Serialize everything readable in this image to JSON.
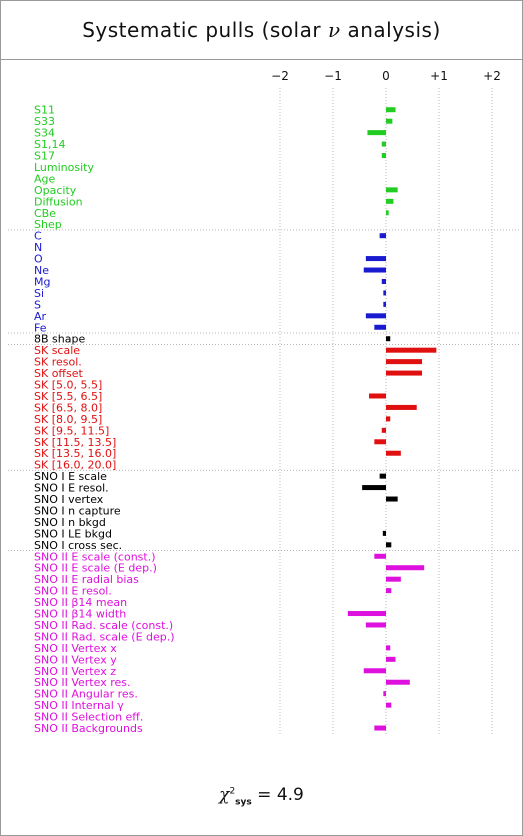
{
  "title": {
    "prefix": "Systematic pulls (solar ",
    "symbol": "ν",
    "suffix": " analysis)"
  },
  "chi2": {
    "symbol": "χ",
    "sup": "2",
    "sub": "sys",
    "text": " = 4.9"
  },
  "chart_data": {
    "type": "bar",
    "orientation": "horizontal",
    "title": "Systematic pulls (solar ν analysis)",
    "xlim": [
      -2.3,
      2.3
    ],
    "xticks": [
      -2,
      -1,
      0,
      1,
      2
    ],
    "xtick_labels": [
      "−2",
      "−1",
      "0",
      "+1",
      "+2"
    ],
    "grid": true,
    "colors": {
      "solar": "#22cc22",
      "composition": "#1a1ad0",
      "b8": "#000000",
      "sk": "#e01010",
      "snoI": "#000000",
      "snoII": "#dd10dd"
    },
    "groups": [
      {
        "name": "solar",
        "color": "#22cc22",
        "items": [
          {
            "label": "S11",
            "value": 0.18
          },
          {
            "label": "S33",
            "value": 0.12
          },
          {
            "label": "S34",
            "value": -0.35
          },
          {
            "label": "S1,14",
            "value": -0.08
          },
          {
            "label": "S17",
            "value": -0.08
          },
          {
            "label": "Luminosity",
            "value": 0.0
          },
          {
            "label": "Age",
            "value": 0.0
          },
          {
            "label": "Opacity",
            "value": 0.22
          },
          {
            "label": "Diffusion",
            "value": 0.14
          },
          {
            "label": "CBe",
            "value": 0.05
          },
          {
            "label": "Shep",
            "value": 0.0
          }
        ]
      },
      {
        "name": "composition",
        "color": "#1a1ad0",
        "items": [
          {
            "label": "C",
            "value": -0.12
          },
          {
            "label": "N",
            "value": 0.0
          },
          {
            "label": "O",
            "value": -0.38
          },
          {
            "label": "Ne",
            "value": -0.42
          },
          {
            "label": "Mg",
            "value": -0.08
          },
          {
            "label": "Si",
            "value": -0.05
          },
          {
            "label": "S",
            "value": -0.05
          },
          {
            "label": "Ar",
            "value": -0.38
          },
          {
            "label": "Fe",
            "value": -0.22
          }
        ]
      },
      {
        "name": "b8",
        "color": "#000000",
        "items": [
          {
            "label": "8B shape",
            "value": 0.08
          }
        ]
      },
      {
        "name": "sk",
        "color": "#e01010",
        "items": [
          {
            "label": "SK scale",
            "value": 0.95
          },
          {
            "label": "SK resol.",
            "value": 0.68
          },
          {
            "label": "SK offset",
            "value": 0.68
          },
          {
            "label": "SK [5.0, 5.5]",
            "value": 0.0
          },
          {
            "label": "SK [5.5, 6.5]",
            "value": -0.32
          },
          {
            "label": "SK [6.5, 8.0]",
            "value": 0.58
          },
          {
            "label": "SK [8.0, 9.5]",
            "value": 0.08
          },
          {
            "label": "SK [9.5, 11.5]",
            "value": -0.08
          },
          {
            "label": "SK [11.5, 13.5]",
            "value": -0.22
          },
          {
            "label": "SK [13.5, 16.0]",
            "value": 0.28
          },
          {
            "label": "SK [16.0, 20.0]",
            "value": 0.0
          }
        ]
      },
      {
        "name": "snoI",
        "color": "#000000",
        "items": [
          {
            "label": "SNO I E scale",
            "value": -0.12
          },
          {
            "label": "SNO I E resol.",
            "value": -0.45
          },
          {
            "label": "SNO I vertex",
            "value": 0.22
          },
          {
            "label": "SNO I n capture",
            "value": 0.0
          },
          {
            "label": "SNO I n bkgd",
            "value": 0.0
          },
          {
            "label": "SNO I LE bkgd",
            "value": -0.06
          },
          {
            "label": "SNO I cross sec.",
            "value": 0.1
          }
        ]
      },
      {
        "name": "snoII",
        "color": "#dd10dd",
        "items": [
          {
            "label": "SNO II E scale (const.)",
            "value": -0.22
          },
          {
            "label": "SNO II E scale (E dep.)",
            "value": 0.72
          },
          {
            "label": "SNO II E radial bias",
            "value": 0.28
          },
          {
            "label": "SNO II E resol.",
            "value": 0.1
          },
          {
            "label": "SNO II β14 mean",
            "value": 0.0
          },
          {
            "label": "SNO II β14 width",
            "value": -0.72
          },
          {
            "label": "SNO II Rad. scale (const.)",
            "value": -0.38
          },
          {
            "label": "SNO II Rad. scale (E dep.)",
            "value": 0.0
          },
          {
            "label": "SNO II Vertex x",
            "value": 0.08
          },
          {
            "label": "SNO II Vertex y",
            "value": 0.18
          },
          {
            "label": "SNO II Vertex z",
            "value": -0.42
          },
          {
            "label": "SNO II Vertex res.",
            "value": 0.45
          },
          {
            "label": "SNO II Angular res.",
            "value": -0.05
          },
          {
            "label": "SNO II Internal γ",
            "value": 0.1
          },
          {
            "label": "SNO II Selection eff.",
            "value": 0.0
          },
          {
            "label": "SNO II Backgrounds",
            "value": -0.22
          }
        ]
      }
    ]
  }
}
